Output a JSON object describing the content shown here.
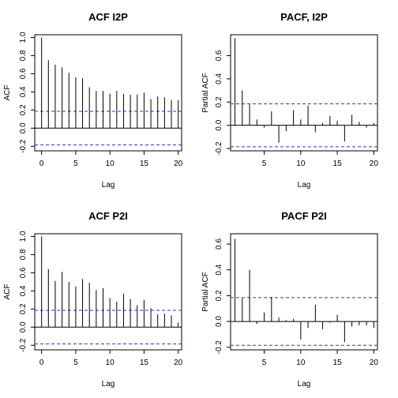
{
  "chart_data": [
    {
      "type": "bar",
      "title": "ACF I2P",
      "xlabel": "Lag",
      "ylabel": "ACF",
      "x": [
        0,
        1,
        2,
        3,
        4,
        5,
        6,
        7,
        8,
        9,
        10,
        11,
        12,
        13,
        14,
        15,
        16,
        17,
        18,
        19,
        20
      ],
      "values": [
        1.0,
        0.75,
        0.7,
        0.67,
        0.61,
        0.56,
        0.55,
        0.45,
        0.41,
        0.41,
        0.38,
        0.41,
        0.38,
        0.37,
        0.37,
        0.39,
        0.32,
        0.35,
        0.34,
        0.31,
        0.31
      ],
      "confidence_bound": 0.185,
      "xlim": [
        -1,
        20.5
      ],
      "ylim": [
        -0.25,
        1.03
      ],
      "xticks": [
        0,
        5,
        10,
        15,
        20
      ],
      "yticks": [
        -0.2,
        0.0,
        0.2,
        0.4,
        0.6,
        0.8,
        1.0
      ],
      "ytick_labels": [
        "-0.2",
        "0.0",
        "0.2",
        "0.4",
        "0.6",
        "0.8",
        "1.0"
      ]
    },
    {
      "type": "bar",
      "title": "PACF, I2P",
      "xlabel": "Lag",
      "ylabel": "Partial ACF",
      "x": [
        1,
        2,
        3,
        4,
        5,
        6,
        7,
        8,
        9,
        10,
        11,
        12,
        13,
        14,
        15,
        16,
        17,
        18,
        19,
        20
      ],
      "values": [
        0.75,
        0.3,
        0.18,
        0.05,
        -0.02,
        0.12,
        -0.15,
        -0.05,
        0.13,
        0.05,
        0.17,
        -0.06,
        0.02,
        0.08,
        0.04,
        -0.14,
        0.09,
        0.03,
        -0.02,
        0.02
      ],
      "confidence_bound": 0.185,
      "xlim": [
        0.4,
        20.5
      ],
      "ylim": [
        -0.22,
        0.78
      ],
      "xticks": [
        5,
        10,
        15,
        20
      ],
      "yticks": [
        -0.2,
        0.0,
        0.2,
        0.4,
        0.6
      ],
      "ytick_labels": [
        "-0.2",
        "0.0",
        "0.2",
        "0.4",
        "0.6"
      ]
    },
    {
      "type": "bar",
      "title": "ACF P2I",
      "xlabel": "Lag",
      "ylabel": "ACF",
      "x": [
        0,
        1,
        2,
        3,
        4,
        5,
        6,
        7,
        8,
        9,
        10,
        11,
        12,
        13,
        14,
        15,
        16,
        17,
        18,
        19,
        20
      ],
      "values": [
        1.0,
        0.64,
        0.51,
        0.61,
        0.5,
        0.45,
        0.53,
        0.49,
        0.41,
        0.43,
        0.32,
        0.28,
        0.37,
        0.31,
        0.24,
        0.3,
        0.21,
        0.14,
        0.15,
        0.13,
        0.05
      ],
      "confidence_bound": 0.185,
      "xlim": [
        -1,
        20.5
      ],
      "ylim": [
        -0.25,
        1.03
      ],
      "xticks": [
        0,
        5,
        10,
        15,
        20
      ],
      "yticks": [
        -0.2,
        0.0,
        0.2,
        0.4,
        0.6,
        0.8,
        1.0
      ],
      "ytick_labels": [
        "-0.2",
        "0.0",
        "0.2",
        "0.4",
        "0.6",
        "0.8",
        "1.0"
      ]
    },
    {
      "type": "bar",
      "title": "PACF P2I",
      "xlabel": "Lag",
      "ylabel": "Partial ACF",
      "x": [
        1,
        2,
        3,
        4,
        5,
        6,
        7,
        8,
        9,
        10,
        11,
        12,
        13,
        14,
        15,
        16,
        17,
        18,
        19,
        20
      ],
      "values": [
        0.64,
        0.18,
        0.4,
        -0.02,
        0.07,
        0.19,
        0.03,
        0.01,
        0.02,
        -0.14,
        -0.05,
        0.13,
        -0.06,
        -0.01,
        0.05,
        -0.16,
        -0.04,
        -0.03,
        -0.03,
        -0.05
      ],
      "confidence_bound": 0.185,
      "xlim": [
        0.4,
        20.5
      ],
      "ylim": [
        -0.22,
        0.68
      ],
      "xticks": [
        5,
        10,
        15,
        20
      ],
      "yticks": [
        -0.2,
        0.0,
        0.2,
        0.4,
        0.6
      ],
      "ytick_labels": [
        "-0.2",
        "0.0",
        "0.2",
        "0.4",
        "0.6"
      ]
    }
  ],
  "colors": {
    "bounds": "#3333cc",
    "lines": "#000000",
    "axes": "#000000"
  }
}
